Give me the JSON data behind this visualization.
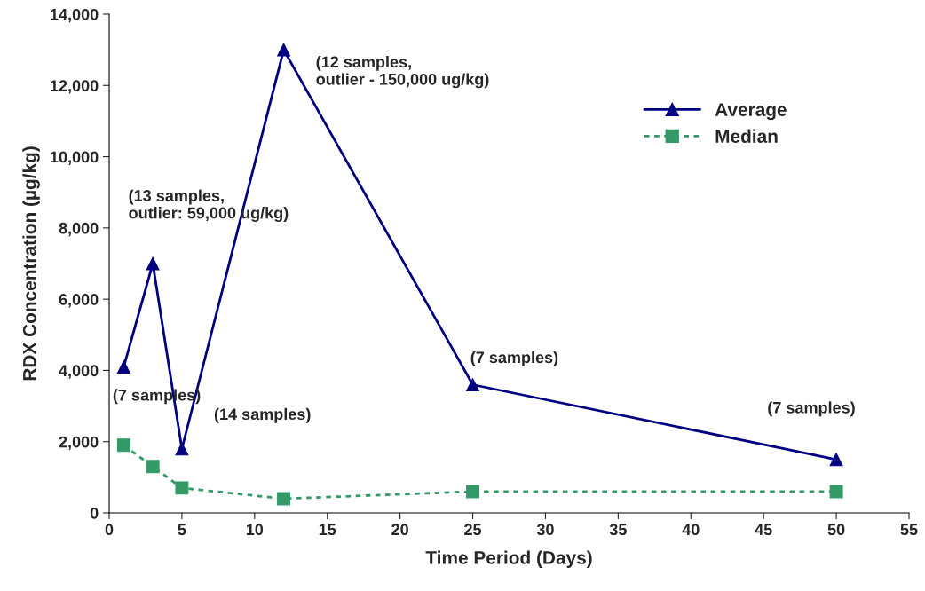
{
  "chart_data": {
    "type": "line",
    "xlabel": "Time Period (Days)",
    "ylabel": "RDX Concentration (µg/kg)",
    "x": [
      1,
      3,
      5,
      12,
      25,
      50
    ],
    "series": [
      {
        "name": "Average",
        "color": "#000080",
        "values": [
          4100,
          7000,
          1800,
          13000,
          3600,
          1500
        ],
        "marker": "triangle",
        "line_style": "solid"
      },
      {
        "name": "Median",
        "color": "#339966",
        "values": [
          1900,
          1300,
          700,
          400,
          600,
          600
        ],
        "marker": "square",
        "line_style": "dotted"
      }
    ],
    "xlim": [
      0,
      55
    ],
    "xticks": [
      0,
      5,
      10,
      15,
      20,
      25,
      30,
      35,
      40,
      45,
      50,
      55
    ],
    "ylim": [
      0,
      14000
    ],
    "yticks": [
      0,
      {
        "value": 2000,
        "label": "2,000"
      },
      {
        "value": 4000,
        "label": "4,000"
      },
      {
        "value": 6000,
        "label": "6,000"
      },
      {
        "value": 8000,
        "label": "8,000"
      },
      {
        "value": 10000,
        "label": "10,000"
      },
      {
        "value": 12000,
        "label": "12,000"
      },
      {
        "value": 14000,
        "label": "14,000"
      }
    ],
    "grid": false,
    "legend": "top right",
    "annotations": [
      {
        "text": "(7 samples)",
        "x": 1,
        "y": 4100
      },
      "(13 samples,\noutlier: 59,000 ug/kg)",
      {
        "text": "(14 samples)",
        "x": 5,
        "y": 1800
      },
      {
        "text": "(12 samples,\noutlier - 150,000 ug/kg)",
        "x": 12,
        "y": 13000
      },
      {
        "text": "(7 samples)",
        "x": 25,
        "y": 3600
      },
      {
        "text": "(7 samples)",
        "x": 50,
        "y": 1500
      }
    ]
  }
}
